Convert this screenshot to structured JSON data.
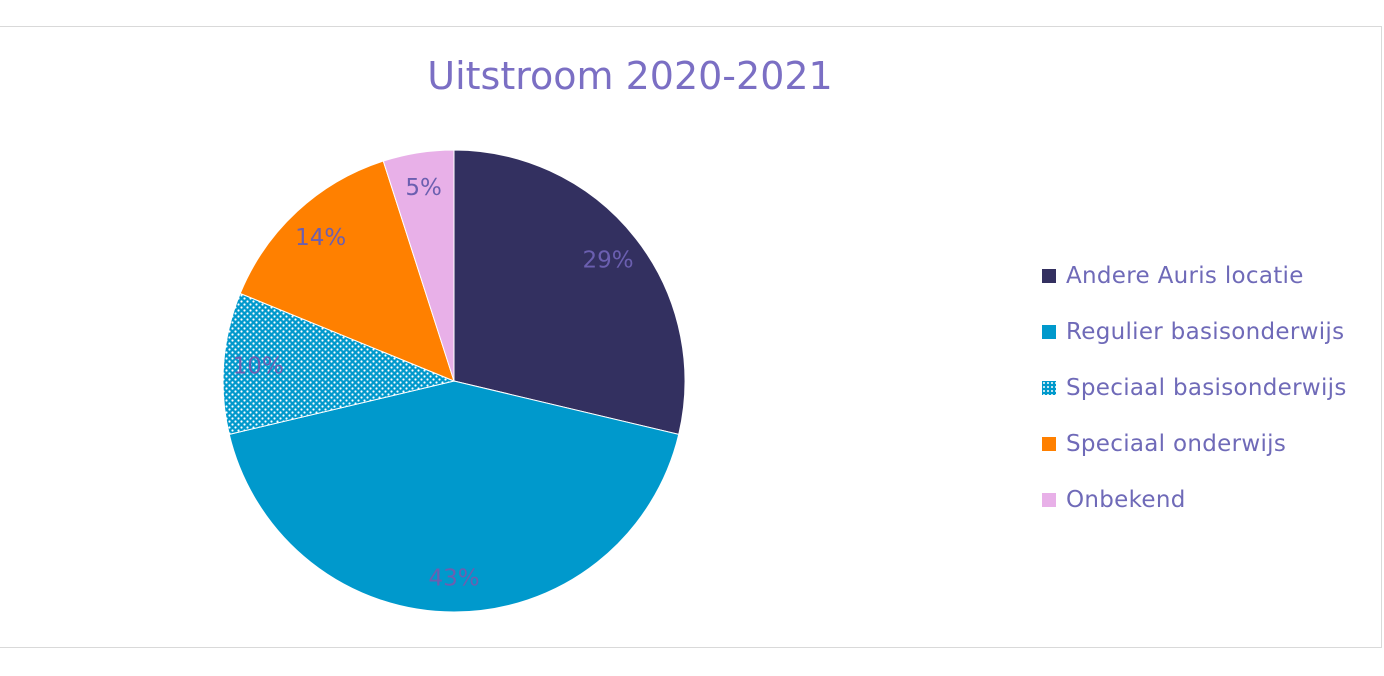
{
  "chart_data": {
    "type": "pie",
    "title": "Uitstroom 2020-2021",
    "legend_position": "right",
    "slices": [
      {
        "label": "Andere Auris locatie",
        "value": 29,
        "display": "29%",
        "color": "#333060",
        "pattern": "solid"
      },
      {
        "label": "Regulier basisonderwijs",
        "value": 43,
        "display": "43%",
        "color": "#0099cc",
        "pattern": "solid"
      },
      {
        "label": "Speciaal basisonderwijs",
        "value": 10,
        "display": "10%",
        "color": "#0099cc",
        "pattern": "dots"
      },
      {
        "label": "Speciaal onderwijs",
        "value": 14,
        "display": "14%",
        "color": "#ff8000",
        "pattern": "solid"
      },
      {
        "label": "Onbekend",
        "value": 5,
        "display": "5%",
        "color": "#e8b0e8",
        "pattern": "solid"
      }
    ],
    "label_color": "#6b5fb0"
  }
}
